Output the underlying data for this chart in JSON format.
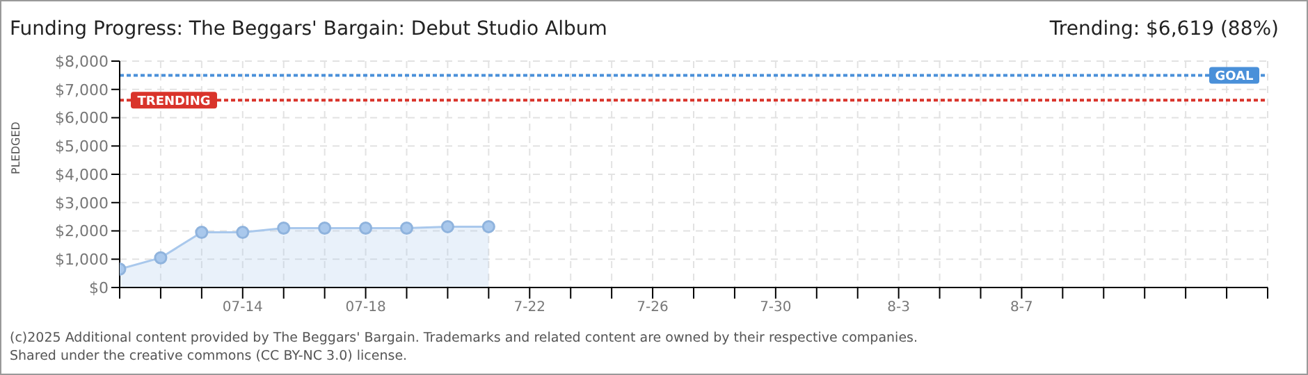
{
  "chart_data": {
    "type": "area",
    "title": "Funding Progress: The Beggars' Bargain: Debut Studio Album",
    "subtitle": "Trending: $6,619 (88%)",
    "ylabel": "PLEDGED",
    "categories": [
      null,
      null,
      null,
      "07-14",
      null,
      null,
      "07-18",
      null,
      null,
      null,
      "7-22",
      null,
      null,
      "7-26",
      null,
      null,
      "7-30",
      null,
      null,
      "8-3",
      null,
      null,
      "8-7",
      null,
      null,
      null,
      null,
      null,
      null
    ],
    "series": [
      {
        "color": "#a9c8ec",
        "values": [
          650,
          1050,
          1950,
          1950,
          2100,
          2100,
          2100,
          2100,
          2150,
          2150,
          null,
          null,
          null,
          null,
          null,
          null,
          null,
          null,
          null,
          null,
          null,
          null,
          null,
          null,
          null,
          null,
          null,
          null,
          null
        ]
      }
    ],
    "ylim": [
      0,
      8000
    ],
    "yticks": [
      {
        "value": 0,
        "label": "$0"
      },
      {
        "value": 1000,
        "label": "$1,000"
      },
      {
        "value": 2000,
        "label": "$2,000"
      },
      {
        "value": 3000,
        "label": "$3,000"
      },
      {
        "value": 4000,
        "label": "$4,000"
      },
      {
        "value": 5000,
        "label": "$5,000"
      },
      {
        "value": 6000,
        "label": "$6,000"
      },
      {
        "value": 7000,
        "label": "$7,000"
      },
      {
        "value": 8000,
        "label": "$8,000"
      }
    ],
    "ref_lines": [
      {
        "axis": "y",
        "value": 7500,
        "label": "GOAL",
        "color": "#4a90d9",
        "line_style": "dotted"
      },
      {
        "axis": "y",
        "value": 6619,
        "label": "TRENDING",
        "color": "#d9342b",
        "line_style": "dotted"
      }
    ],
    "grid": true,
    "marker": "circle",
    "legend": false,
    "annotations": [
      "(c)2025 Additional content provided by The Beggars' Bargain. Trademarks and related content are owned by their respective companies.",
      "Shared under the creative commons (CC BY-NC 3.0) license."
    ]
  }
}
